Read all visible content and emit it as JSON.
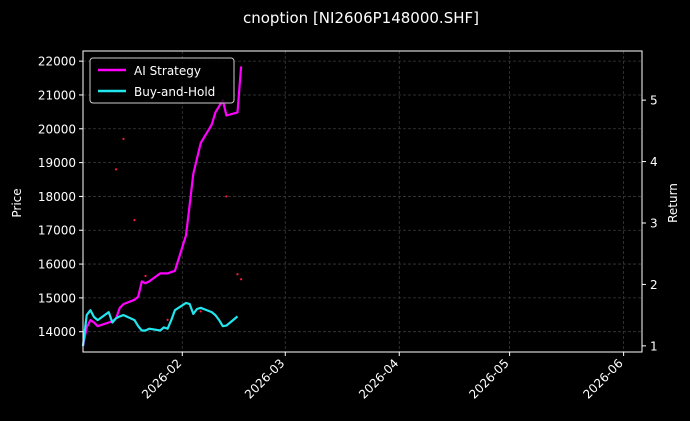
{
  "chart_data": {
    "type": "line",
    "title": "cnoption [NI2606P148000.SHF]",
    "ylabel_left": "Price",
    "ylabel_right": "Return",
    "x_range": [
      "2026-01-05",
      "2026-06-06"
    ],
    "ylim_left": [
      13400,
      22300
    ],
    "ylim_right": [
      0.9,
      5.8
    ],
    "x_ticks": [
      "2026-02",
      "2026-03",
      "2026-04",
      "2026-05",
      "2026-06"
    ],
    "y_ticks_left": [
      14000,
      15000,
      16000,
      17000,
      18000,
      19000,
      20000,
      21000,
      22000
    ],
    "y_ticks_right": [
      1,
      2,
      3,
      4,
      5
    ],
    "grid": true,
    "legend_position": "top-left",
    "colors": {
      "background": "#000000",
      "text": "#ffffff",
      "grid": "#3a3a3a",
      "strategy": "#ff00ff",
      "buyhold": "#22e5ee",
      "scatter": "#ff1a3c"
    },
    "series": [
      {
        "name": "AI Strategy",
        "axis": "right",
        "color": "#ff00ff",
        "points": [
          [
            "2026-01-05",
            1.0
          ],
          [
            "2026-01-06",
            1.3
          ],
          [
            "2026-01-07",
            1.42
          ],
          [
            "2026-01-08",
            1.38
          ],
          [
            "2026-01-09",
            1.32
          ],
          [
            "2026-01-12",
            1.38
          ],
          [
            "2026-01-13",
            1.4
          ],
          [
            "2026-01-14",
            1.45
          ],
          [
            "2026-01-15",
            1.62
          ],
          [
            "2026-01-16",
            1.68
          ],
          [
            "2026-01-19",
            1.75
          ],
          [
            "2026-01-20",
            1.8
          ],
          [
            "2026-01-21",
            2.05
          ],
          [
            "2026-01-22",
            2.02
          ],
          [
            "2026-01-23",
            2.05
          ],
          [
            "2026-01-26",
            2.18
          ],
          [
            "2026-01-27",
            2.18
          ],
          [
            "2026-01-28",
            2.18
          ],
          [
            "2026-01-29",
            2.2
          ],
          [
            "2026-01-30",
            2.22
          ],
          [
            "2026-02-02",
            2.8
          ],
          [
            "2026-02-03",
            3.3
          ],
          [
            "2026-02-04",
            3.8
          ],
          [
            "2026-02-05",
            4.05
          ],
          [
            "2026-02-06",
            4.3
          ],
          [
            "2026-02-09",
            4.6
          ],
          [
            "2026-02-10",
            4.8
          ],
          [
            "2026-02-11",
            4.9
          ],
          [
            "2026-02-12",
            5.0
          ],
          [
            "2026-02-13",
            4.75
          ],
          [
            "2026-02-16",
            4.8
          ],
          [
            "2026-02-17",
            5.55
          ]
        ]
      },
      {
        "name": "Buy-and-Hold",
        "axis": "right",
        "color": "#22e5ee",
        "points": [
          [
            "2026-01-05",
            1.0
          ],
          [
            "2026-01-06",
            1.5
          ],
          [
            "2026-01-07",
            1.58
          ],
          [
            "2026-01-08",
            1.47
          ],
          [
            "2026-01-09",
            1.42
          ],
          [
            "2026-01-12",
            1.55
          ],
          [
            "2026-01-13",
            1.38
          ],
          [
            "2026-01-14",
            1.45
          ],
          [
            "2026-01-15",
            1.48
          ],
          [
            "2026-01-16",
            1.5
          ],
          [
            "2026-01-19",
            1.42
          ],
          [
            "2026-01-20",
            1.32
          ],
          [
            "2026-01-21",
            1.25
          ],
          [
            "2026-01-22",
            1.25
          ],
          [
            "2026-01-23",
            1.28
          ],
          [
            "2026-01-26",
            1.25
          ],
          [
            "2026-01-27",
            1.3
          ],
          [
            "2026-01-28",
            1.28
          ],
          [
            "2026-01-29",
            1.42
          ],
          [
            "2026-01-30",
            1.58
          ],
          [
            "2026-02-02",
            1.7
          ],
          [
            "2026-02-03",
            1.68
          ],
          [
            "2026-02-04",
            1.52
          ],
          [
            "2026-02-05",
            1.6
          ],
          [
            "2026-02-06",
            1.62
          ],
          [
            "2026-02-09",
            1.55
          ],
          [
            "2026-02-10",
            1.5
          ],
          [
            "2026-02-11",
            1.42
          ],
          [
            "2026-02-12",
            1.32
          ],
          [
            "2026-02-13",
            1.33
          ],
          [
            "2026-02-16",
            1.48
          ]
        ]
      }
    ],
    "scatter": {
      "axis": "left",
      "color": "#ff1a3c",
      "points": [
        [
          "2026-01-16",
          19700
        ],
        [
          "2026-01-14",
          18800
        ],
        [
          "2026-01-19",
          17300
        ],
        [
          "2026-01-22",
          15650
        ],
        [
          "2026-02-13",
          18000
        ],
        [
          "2026-02-16",
          15700
        ],
        [
          "2026-02-17",
          15550
        ],
        [
          "2026-01-28",
          14350
        ],
        [
          "2026-02-06",
          14600
        ]
      ]
    }
  }
}
